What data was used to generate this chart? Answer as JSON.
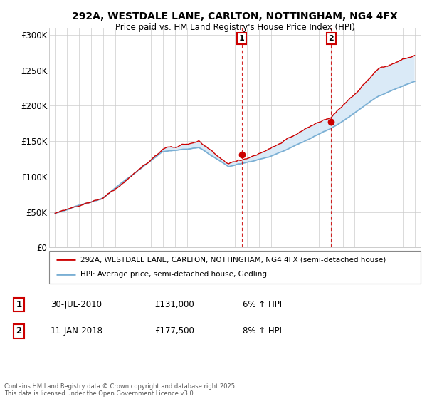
{
  "title1": "292A, WESTDALE LANE, CARLTON, NOTTINGHAM, NG4 4FX",
  "title2": "Price paid vs. HM Land Registry's House Price Index (HPI)",
  "ylabel_ticks": [
    "£0",
    "£50K",
    "£100K",
    "£150K",
    "£200K",
    "£250K",
    "£300K"
  ],
  "ylabel_values": [
    0,
    50000,
    100000,
    150000,
    200000,
    250000,
    300000
  ],
  "ylim": [
    0,
    310000
  ],
  "xlim_start": 1994.5,
  "xlim_end": 2025.5,
  "grid_color": "#cccccc",
  "hpi_color": "#7aafd4",
  "price_color": "#cc0000",
  "shade_color": "#daeaf7",
  "marker1_date": 2010.58,
  "marker2_date": 2018.03,
  "marker1_price": 131000,
  "marker2_price": 177500,
  "legend_line1": "292A, WESTDALE LANE, CARLTON, NOTTINGHAM, NG4 4FX (semi-detached house)",
  "legend_line2": "HPI: Average price, semi-detached house, Gedling",
  "annotation1_date": "30-JUL-2010",
  "annotation1_price": "£131,000",
  "annotation1_hpi": "6% ↑ HPI",
  "annotation2_date": "11-JAN-2018",
  "annotation2_price": "£177,500",
  "annotation2_hpi": "8% ↑ HPI",
  "footer": "Contains HM Land Registry data © Crown copyright and database right 2025.\nThis data is licensed under the Open Government Licence v3.0."
}
